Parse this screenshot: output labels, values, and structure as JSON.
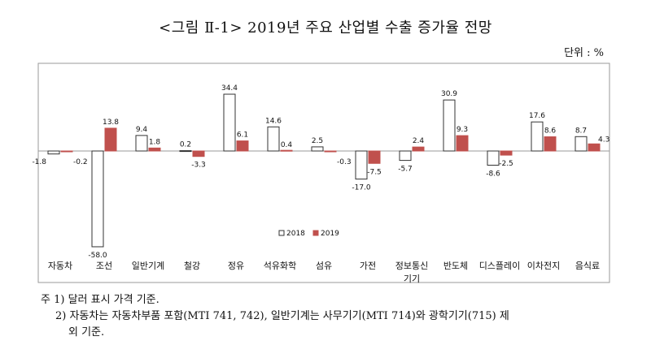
{
  "title": "<그림 Ⅱ-1> 2019년 주요 산업별 수출 증가율 전망",
  "unit_label": "단위 : %",
  "chart_data": {
    "type": "bar",
    "title": "2019년 주요 산업별 수출 증가율 전망",
    "xlabel": "",
    "ylabel": "%",
    "ylim": [
      -60,
      40
    ],
    "grid": false,
    "legend_position": "bottom-right inside plot",
    "categories": [
      "자동차",
      "조선",
      "일반기계",
      "철강",
      "정유",
      "석유화학",
      "섬유",
      "가전",
      "정보통신기기",
      "반도체",
      "디스플레이",
      "이차전지",
      "음식료"
    ],
    "category_lines": [
      [
        "자동차"
      ],
      [
        "조선"
      ],
      [
        "일반기계"
      ],
      [
        "철강"
      ],
      [
        "정유"
      ],
      [
        "석유화학"
      ],
      [
        "섬유"
      ],
      [
        "가전"
      ],
      [
        "정보통신",
        "기기"
      ],
      [
        "반도체"
      ],
      [
        "디스플레이"
      ],
      [
        "이차전지"
      ],
      [
        "음식료"
      ]
    ],
    "series": [
      {
        "name": "2018",
        "color": "#ffffff",
        "stroke": "#333333",
        "values": [
          -1.8,
          -58.0,
          9.4,
          0.2,
          34.4,
          14.6,
          2.5,
          -17.0,
          -5.7,
          30.9,
          -8.6,
          17.6,
          8.7
        ],
        "labels": [
          "-1.8",
          "-58.0",
          "9.4",
          "0.2",
          "34.4",
          "14.6",
          "2.5",
          "-17.0",
          "-5.7",
          "30.9",
          "-8.6",
          "17.6",
          "8.7"
        ]
      },
      {
        "name": "2019",
        "color": "#c0504d",
        "stroke": "#c0504d",
        "values": [
          -0.2,
          13.8,
          1.8,
          -3.3,
          6.1,
          0.4,
          -0.3,
          -7.5,
          2.4,
          9.3,
          -2.5,
          8.6,
          4.3
        ],
        "labels": [
          "-0.2",
          "13.8",
          "1.8",
          "-3.3",
          "6.1",
          "0.4",
          "-0.3",
          "-7.5",
          "2.4",
          "9.3",
          "-2.5",
          "8.6",
          "4.3"
        ]
      }
    ]
  },
  "notes": {
    "line1": "주 1) 달러 표시 가격 기준.",
    "line2": "2) 자동차는 자동차부품 포함(MTI 741, 742), 일반기계는 사무기기(MTI 714)와 광학기기(715) 제",
    "line3": "외 기준."
  }
}
